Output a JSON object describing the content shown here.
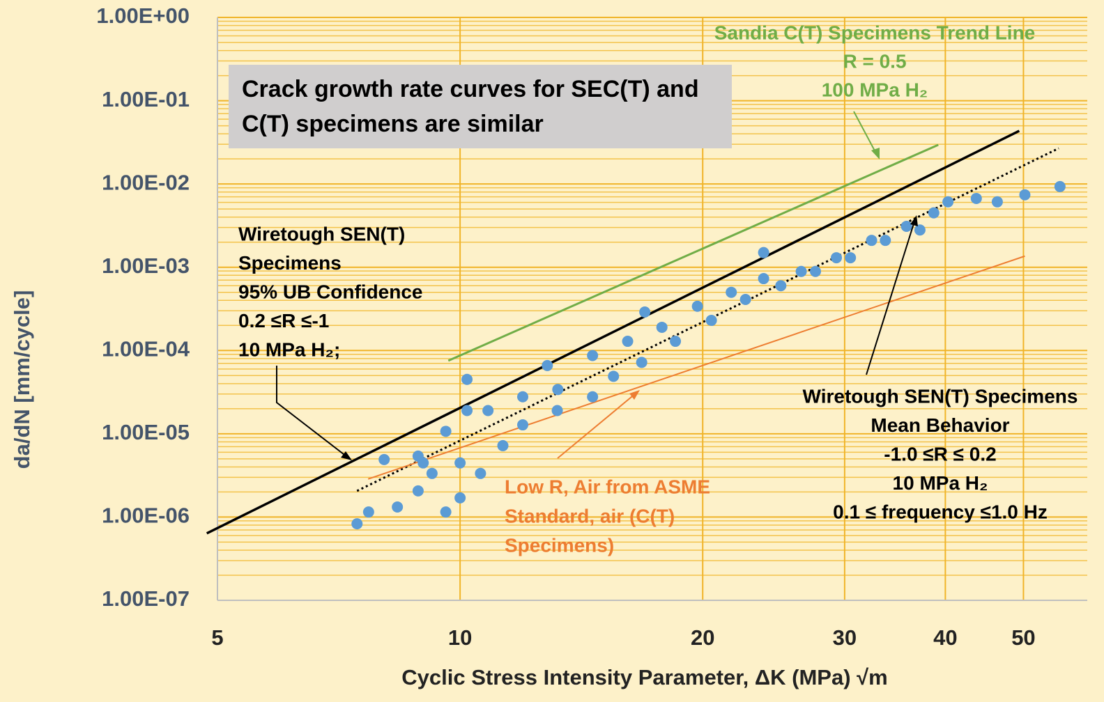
{
  "chart_data": {
    "type": "scatter",
    "x_label": "Cyclic Stress Intensity Parameter, ΔK (MPa) √m",
    "y_label": "da/dN [mm/cycle]",
    "xlog": true,
    "ylog": true,
    "grid": true,
    "xlim": [
      5,
      60
    ],
    "ylim": [
      1e-07,
      1
    ],
    "xticks": [
      5,
      10,
      20,
      30,
      40,
      50
    ],
    "yticks": [
      {
        "value": 1,
        "label": "1.00E+00"
      },
      {
        "value": 0.1,
        "label": "1.00E-01"
      },
      {
        "value": 0.01,
        "label": "1.00E-02"
      },
      {
        "value": 0.001,
        "label": "1.00E-03"
      },
      {
        "value": 0.0001,
        "label": "1.00E-04"
      },
      {
        "value": 1e-05,
        "label": "1.00E-05"
      },
      {
        "value": 1e-06,
        "label": "1.00E-06"
      },
      {
        "value": 1e-07,
        "label": "1.00E-07"
      }
    ],
    "series": [
      {
        "kind": "points",
        "color": "#5b9bd5",
        "x": [
          7.45,
          7.7,
          8.36,
          8.87,
          9.23,
          10,
          8.05,
          8.87,
          9.0,
          9.6,
          10.2,
          10.2,
          10.83,
          11.96,
          12.83,
          13.22,
          14.6,
          16.14,
          16.95,
          17.8,
          19.7,
          21.7,
          23.8,
          23.8,
          26.5,
          29.3,
          32.4,
          35.8,
          38.7,
          40.3,
          43.7,
          46.4,
          50.2,
          55.5,
          9.6,
          10,
          10.6,
          11.3,
          11.96,
          13.2,
          14.6,
          15.5,
          16.8,
          18.5,
          20.5,
          22.6,
          25,
          27.6,
          30.5,
          33.7,
          37.2
        ],
        "values": [
          8.3e-07,
          1.15e-06,
          1.32e-06,
          2.06e-06,
          3.34e-06,
          4.47e-06,
          4.9e-06,
          5.4e-06,
          4.47e-06,
          1.07e-05,
          4.5e-05,
          1.9e-05,
          1.9e-05,
          2.78e-05,
          6.6e-05,
          3.4e-05,
          8.7e-05,
          0.000129,
          0.00029,
          0.00019,
          0.00034,
          0.0005,
          0.0015,
          0.00073,
          0.00089,
          0.0013,
          0.0021,
          0.0031,
          0.0045,
          0.0061,
          0.0067,
          0.0061,
          0.0074,
          0.0093,
          1.15e-06,
          1.7e-06,
          3.34e-06,
          7.2e-06,
          1.28e-05,
          1.9e-05,
          2.78e-05,
          4.9e-05,
          7.2e-05,
          0.000129,
          0.00023,
          0.00041,
          0.0006,
          0.00089,
          0.0013,
          0.0021,
          0.0028
        ]
      },
      {
        "kind": "line",
        "color": "#70ad47",
        "width": 3,
        "x": [
          9.67,
          39.2
        ],
        "values": [
          7.55e-05,
          0.0295
        ]
      },
      {
        "kind": "line",
        "color": "#000000",
        "width": 3.5,
        "x": [
          4.85,
          49.4
        ],
        "values": [
          6.37e-07,
          0.0434
        ]
      },
      {
        "kind": "line",
        "color": "#000000",
        "width": 3,
        "dash": true,
        "x": [
          7.45,
          55.3
        ],
        "values": [
          2.06e-06,
          0.0268
        ]
      },
      {
        "kind": "line",
        "color": "#ed7d31",
        "width": 2,
        "x": [
          7.69,
          50.2
        ],
        "values": [
          2.86e-06,
          0.00136
        ]
      }
    ],
    "annotations": [
      {
        "color": "#70ad47",
        "lines": [
          "Sandia C(T) Specimens Trend Line",
          "R = 0.5",
          "100 MPa H₂"
        ]
      },
      {
        "color": "#000000",
        "lines": [
          "Crack growth rate curves for SEC(T) and",
          "C(T) specimens are similar"
        ]
      },
      {
        "color": "#000000",
        "lines": [
          "Wiretough SEN(T)",
          "Specimens",
          "95% UB Confidence",
          "0.2 ≤R ≤-1",
          "10 MPa H₂;"
        ]
      },
      {
        "color": "#ed7d31",
        "lines": [
          "Low R, Air from ASME",
          "Standard, air (C(T)",
          "Specimens)"
        ]
      },
      {
        "color": "#000000",
        "lines": [
          "Wiretough SEN(T) Specimens",
          "Mean Behavior",
          "-1.0 ≤R ≤ 0.2",
          "10 MPa H₂",
          "0.1 ≤ frequency ≤1.0 Hz"
        ]
      }
    ]
  }
}
